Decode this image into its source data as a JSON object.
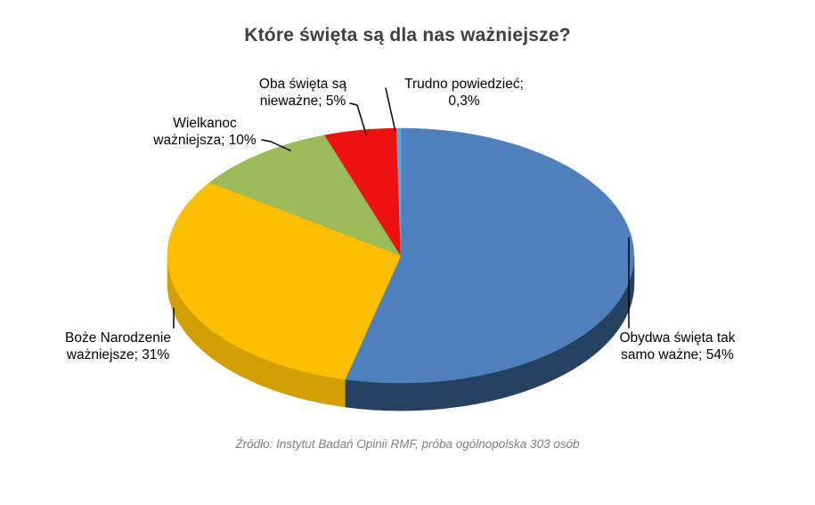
{
  "title": "Które święta są dla nas ważniejsze?",
  "source": "Źródło: Instytut Badań Opinii RMF, próba ogólnopolska 303 osób",
  "colors": {
    "background": "#FFFFFF",
    "title_text": "#3F3F3F",
    "label_text": "#000000",
    "source_text": "#7F7F7F",
    "leader_line": "#000000"
  },
  "chart_data": {
    "type": "pie",
    "style": "3d-pie",
    "title": "Które święta są dla nas ważniejsze?",
    "legend": "none",
    "labels_position": "outside-callouts",
    "label_format": "category; value%",
    "slices": [
      {
        "label": "Obydwa święta tak samo ważne",
        "value": 54,
        "display": "Obydwa święta tak samo ważne; 54%",
        "label_line1": "Obydwa święta tak",
        "label_line2": "samo ważne; 54%",
        "color": "#4E80BD",
        "side_color": "#24415F"
      },
      {
        "label": "Boże Narodzenie ważniejsze",
        "value": 31,
        "display": "Boże Narodzenie ważniejsze; 31%",
        "label_line1": "Boże Narodzenie",
        "label_line2": "ważniejsze; 31%",
        "color": "#FBBE00",
        "side_color": "#D29E00"
      },
      {
        "label": "Wielkanoc ważniejsza",
        "value": 10,
        "display": "Wielkanoc ważniejsza; 10%",
        "label_line1": "Wielkanoc",
        "label_line2": "ważniejsza; 10%",
        "color": "#9BBB59",
        "side_color": "#71893E"
      },
      {
        "label": "Oba święta są nieważne",
        "value": 5,
        "display": "Oba święta są nieważne; 5%",
        "label_line1": "Oba święta są",
        "label_line2": "nieważne; 5%",
        "color": "#EE1111",
        "side_color": "#A30B0B"
      },
      {
        "label": "Trudno powiedzieć",
        "value": 0.3,
        "display": "Trudno powiedzieć; 0,3%",
        "label_line1": "Trudno powiedzieć;",
        "label_line2": "0,3%",
        "color": "#63A5D2",
        "side_color": "#3E78A3"
      }
    ]
  }
}
